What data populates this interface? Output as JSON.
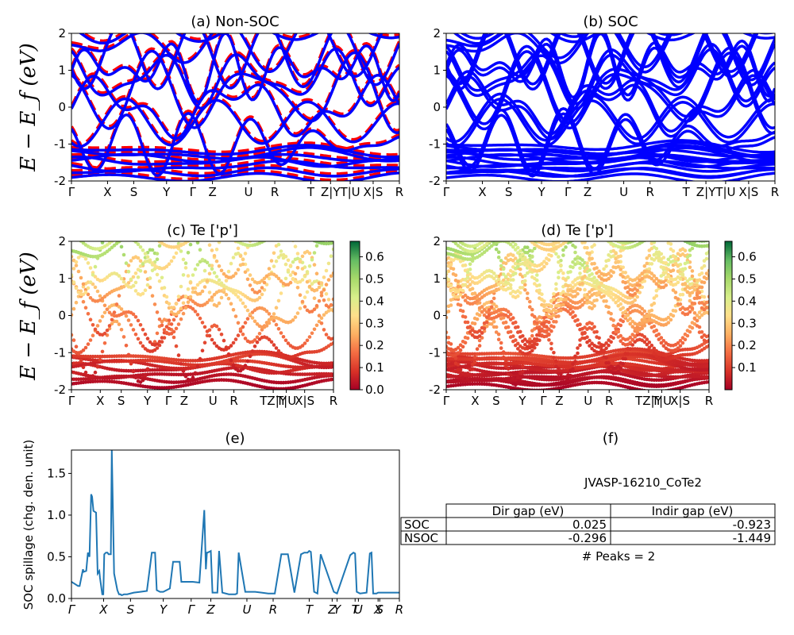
{
  "chart_data": [
    {
      "panel": "a",
      "type": "line",
      "title": "(a) Non-SOC",
      "ylabel": "E − E_f (eV)",
      "ylim": [
        -2,
        2
      ],
      "yticks": [
        -2,
        -1,
        0,
        1,
        2
      ],
      "xticks": [
        "Γ",
        "X",
        "S",
        "Y",
        "Γ",
        "Z",
        "U",
        "R",
        "T",
        "Z|Y",
        "T|U",
        "X|S",
        "R"
      ],
      "xtick_pos": [
        0,
        0.11,
        0.19,
        0.29,
        0.37,
        0.43,
        0.54,
        0.62,
        0.73,
        0.79,
        0.85,
        0.92,
        1.0
      ],
      "colors": {
        "nonsoc": "#ff0000",
        "soc": "#0000ff"
      },
      "series": []
    },
    {
      "panel": "b",
      "type": "line",
      "title": "(b) SOC",
      "ylabel": "",
      "ylim": [
        -2,
        2
      ],
      "yticks": [
        -2,
        -1,
        0,
        1,
        2
      ],
      "xticks": [
        "Γ",
        "X",
        "S",
        "Y",
        "Γ",
        "Z",
        "U",
        "R",
        "T",
        "Z|Y",
        "T|U",
        "X|S",
        "R"
      ],
      "xtick_pos": [
        0,
        0.11,
        0.19,
        0.29,
        0.37,
        0.43,
        0.54,
        0.62,
        0.73,
        0.79,
        0.85,
        0.92,
        1.0
      ],
      "colors": {
        "soc": "#0000ff"
      },
      "series": []
    },
    {
      "panel": "c",
      "type": "scatter",
      "title": "(c)  Te ['p']",
      "ylabel": "E − E_f (eV)",
      "ylim": [
        -2,
        2
      ],
      "yticks": [
        -2,
        -1,
        0,
        1,
        2
      ],
      "xticks": [
        "Γ",
        "X",
        "S",
        "Y",
        "Γ",
        "Z",
        "U",
        "R",
        "TZ|Y",
        "T|U",
        "X|S",
        "R"
      ],
      "xtick_pos": [
        0,
        0.11,
        0.19,
        0.29,
        0.37,
        0.43,
        0.54,
        0.62,
        0.77,
        0.82,
        0.89,
        1.0
      ],
      "colorbar": {
        "ticks": [
          "0.0",
          "0.1",
          "0.2",
          "0.3",
          "0.4",
          "0.5",
          "0.6"
        ],
        "min": 0.0,
        "max": 0.67,
        "cmap": "RdYlGn"
      }
    },
    {
      "panel": "d",
      "type": "scatter",
      "title": "(d) Te ['p']",
      "ylabel": "",
      "ylim": [
        -2,
        2
      ],
      "yticks": [
        -2,
        -1,
        0,
        1,
        2
      ],
      "xticks": [
        "Γ",
        "X",
        "S",
        "Y",
        "Γ",
        "Z",
        "U",
        "R",
        "TZ|Y",
        "T|U",
        "X|S",
        "R"
      ],
      "xtick_pos": [
        0,
        0.11,
        0.19,
        0.29,
        0.37,
        0.43,
        0.54,
        0.62,
        0.77,
        0.82,
        0.89,
        1.0
      ],
      "colorbar": {
        "ticks": [
          "0.1",
          "0.2",
          "0.3",
          "0.4",
          "0.5",
          "0.6"
        ],
        "min": 0.0,
        "max": 0.67,
        "cmap": "RdYlGn"
      }
    },
    {
      "panel": "e",
      "type": "line",
      "title": "(e)",
      "ylabel": "SOC spillage (chg. den. unit)",
      "ylim": [
        0,
        1.78
      ],
      "yticks": [
        "0.0",
        "0.5",
        "1.0",
        "1.5"
      ],
      "xticks": [
        "Γ",
        "X",
        "S",
        "Y",
        "Γ",
        "Z",
        "U",
        "R",
        "T",
        "Z",
        "Y",
        "T",
        "U",
        "X",
        "S",
        "R"
      ],
      "xtick_pos": [
        0,
        0.098,
        0.18,
        0.28,
        0.365,
        0.425,
        0.535,
        0.615,
        0.725,
        0.795,
        0.81,
        0.865,
        0.875,
        0.935,
        0.94,
        1.0
      ],
      "color": "#1f77b4",
      "x": [
        0.0,
        0.02,
        0.025,
        0.035,
        0.037,
        0.045,
        0.05,
        0.055,
        0.06,
        0.063,
        0.067,
        0.075,
        0.08,
        0.085,
        0.087,
        0.094,
        0.097,
        0.1,
        0.105,
        0.11,
        0.113,
        0.12,
        0.123,
        0.13,
        0.14,
        0.145,
        0.15,
        0.152,
        0.155,
        0.16,
        0.17,
        0.19,
        0.21,
        0.23,
        0.245,
        0.25,
        0.255,
        0.26,
        0.27,
        0.28,
        0.29,
        0.3,
        0.31,
        0.33,
        0.335,
        0.338,
        0.34,
        0.35,
        0.37,
        0.39,
        0.405,
        0.41,
        0.413,
        0.415,
        0.42,
        0.425,
        0.43,
        0.445,
        0.45,
        0.46,
        0.48,
        0.49,
        0.5,
        0.5,
        0.505,
        0.51,
        0.53,
        0.56,
        0.58,
        0.6,
        0.61,
        0.62,
        0.64,
        0.66,
        0.68,
        0.7,
        0.71,
        0.72,
        0.725,
        0.73,
        0.74,
        0.745,
        0.75,
        0.76,
        0.8,
        0.81,
        0.85,
        0.86,
        0.865,
        0.87,
        0.88,
        0.9,
        0.91,
        0.915,
        0.92,
        0.93,
        0.935,
        0.94,
        0.95,
        0.955,
        0.96,
        0.97,
        0.98,
        1.0
      ],
      "y": [
        0.2,
        0.15,
        0.15,
        0.35,
        0.32,
        0.33,
        0.55,
        0.5,
        1.25,
        1.22,
        1.05,
        1.03,
        0.3,
        0.33,
        0.25,
        0.05,
        0.05,
        0.53,
        0.55,
        0.55,
        0.53,
        0.53,
        1.78,
        0.3,
        0.1,
        0.05,
        0.05,
        0.04,
        0.04,
        0.05,
        0.05,
        0.07,
        0.08,
        0.09,
        0.55,
        0.55,
        0.55,
        0.1,
        0.08,
        0.08,
        0.1,
        0.12,
        0.44,
        0.44,
        0.2,
        0.2,
        0.2,
        0.2,
        0.2,
        0.19,
        1.06,
        0.35,
        0.55,
        0.55,
        0.56,
        0.57,
        0.07,
        0.07,
        0.57,
        0.07,
        0.05,
        0.05,
        0.05,
        0.05,
        0.06,
        0.55,
        0.08,
        0.08,
        0.07,
        0.06,
        0.06,
        0.06,
        0.53,
        0.53,
        0.07,
        0.53,
        0.55,
        0.55,
        0.57,
        0.56,
        0.08,
        0.07,
        0.06,
        0.53,
        0.08,
        0.06,
        0.52,
        0.55,
        0.54,
        0.08,
        0.06,
        0.07,
        0.54,
        0.55,
        0.06,
        0.06,
        0.07,
        0.07,
        0.07,
        0.07,
        0.07,
        0.07,
        0.07,
        0.07
      ]
    },
    {
      "panel": "f",
      "type": "table",
      "title": "(f)",
      "caption": "JVASP-16210_CoTe2",
      "columns": [
        "Dir gap (eV)",
        "Indir gap (eV)"
      ],
      "rows": [
        {
          "label": "SOC",
          "values": [
            "0.025",
            "-0.923"
          ]
        },
        {
          "label": "NSOC",
          "values": [
            "-0.296",
            "-1.449"
          ]
        }
      ],
      "footer": "# Peaks = 2"
    }
  ]
}
